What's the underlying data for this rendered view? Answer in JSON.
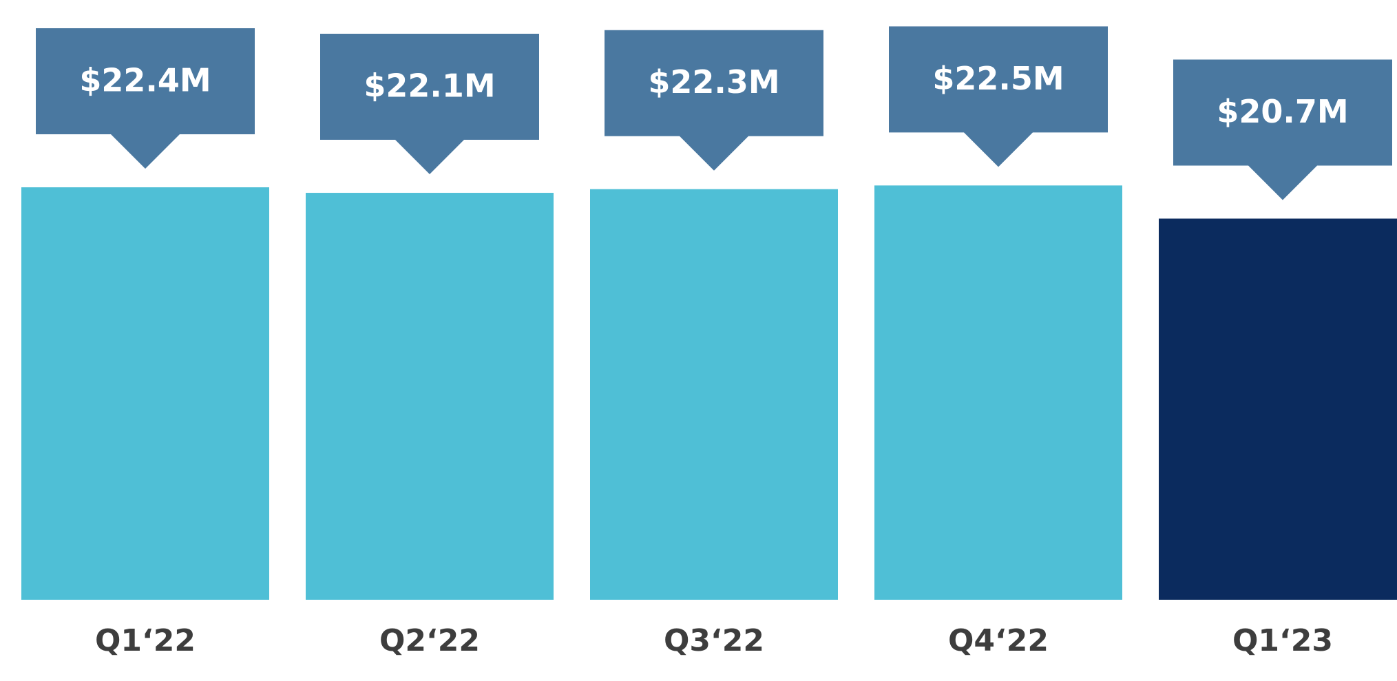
{
  "chart_data": {
    "type": "bar",
    "categories": [
      "Q1‘22",
      "Q2‘22",
      "Q3‘22",
      "Q4‘22",
      "Q1‘23"
    ],
    "values": [
      22.4,
      22.1,
      22.3,
      22.5,
      20.7
    ],
    "value_labels": [
      "$22.4M",
      "$22.1M",
      "$22.3M",
      "$22.5M",
      "$20.7M"
    ],
    "colors": [
      "#4fbfd6",
      "#4fbfd6",
      "#4fbfd6",
      "#4fbfd6",
      "#0b2b5e"
    ],
    "label_box_color": "#4a78a0"
  }
}
